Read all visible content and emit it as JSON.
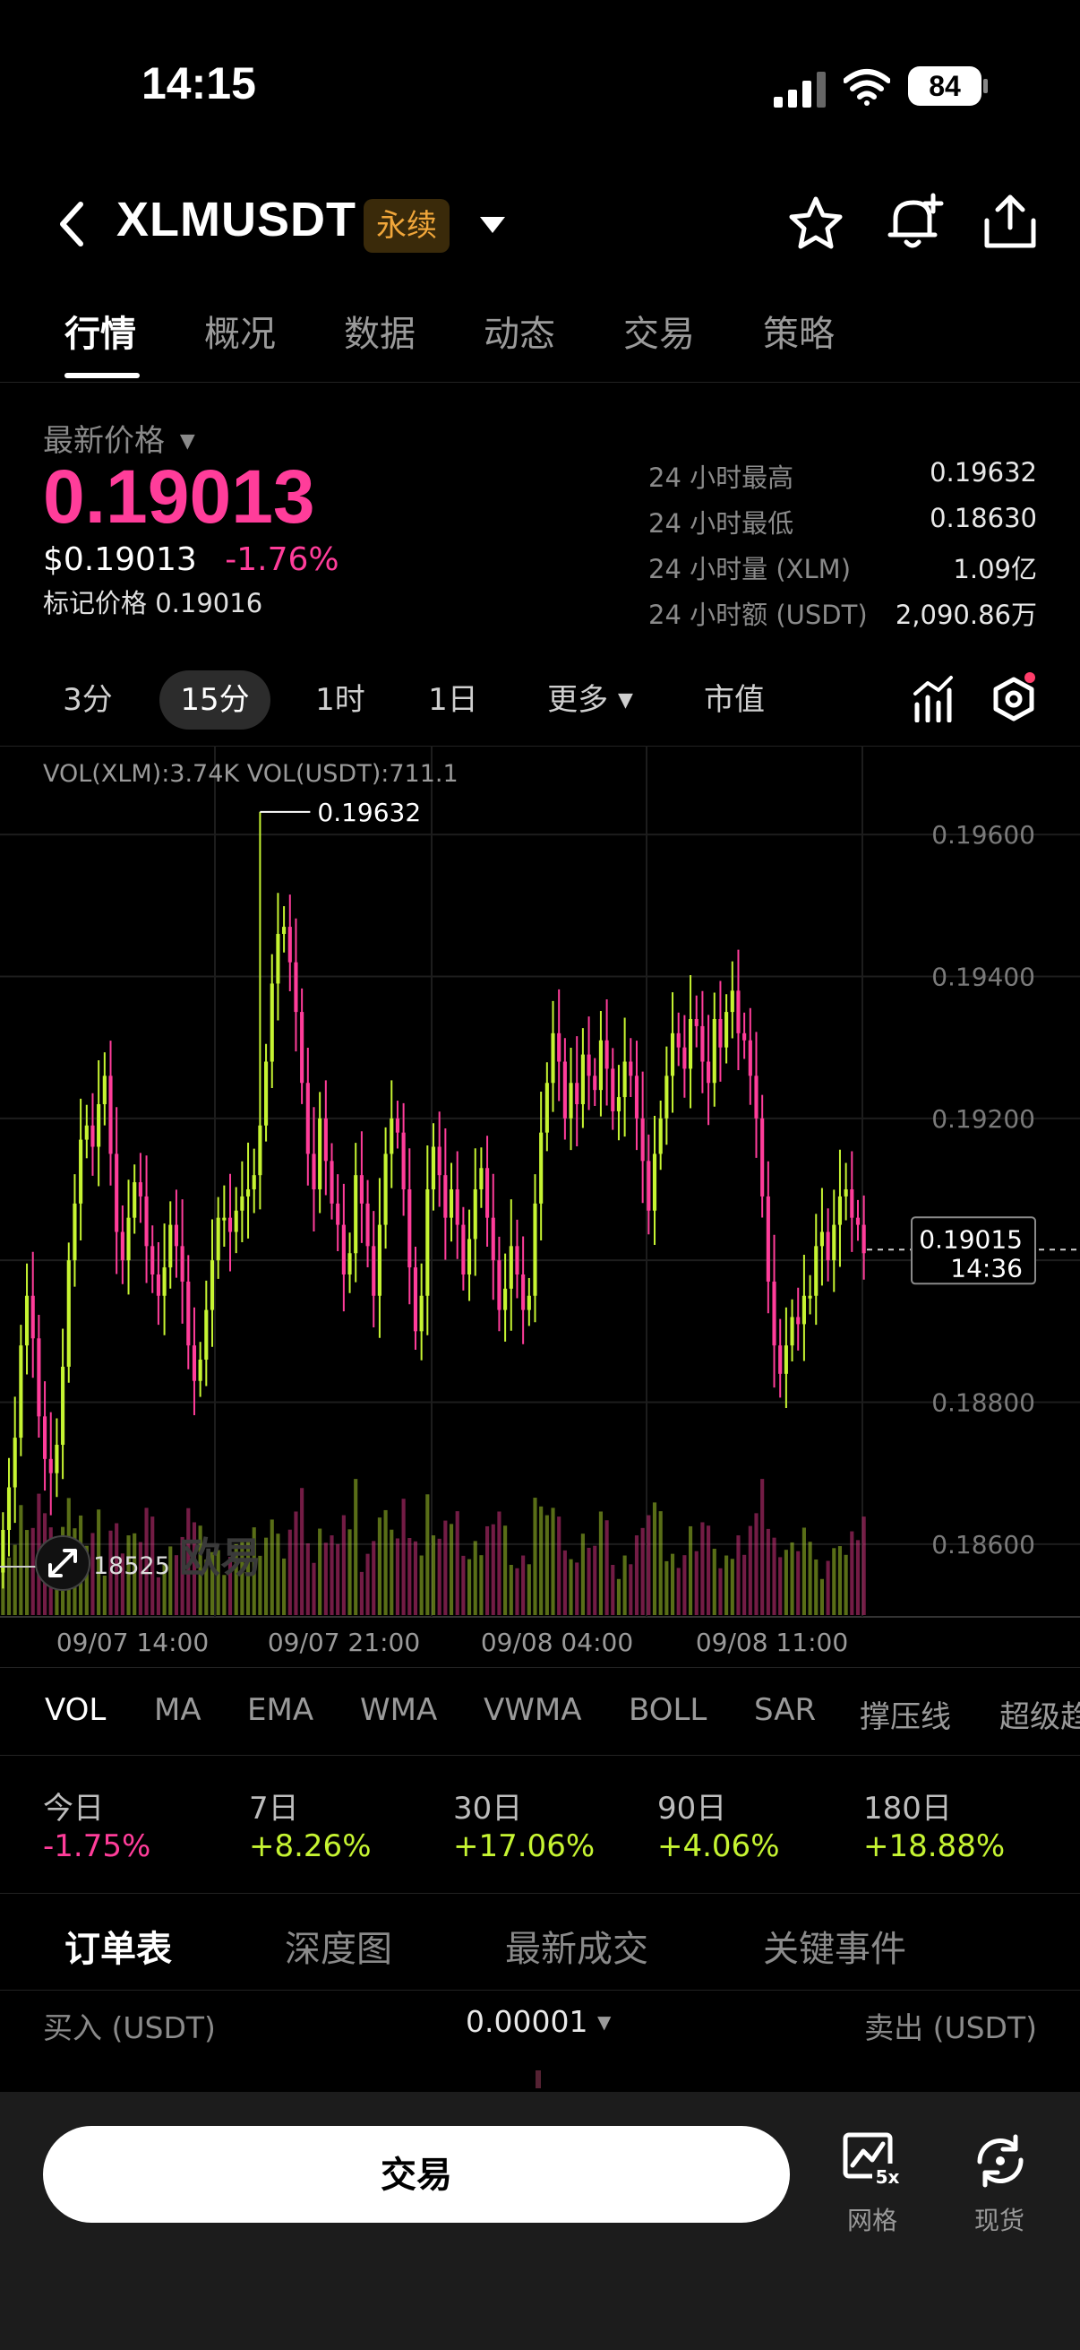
{
  "status_bar": {
    "time": "14:15",
    "battery": "84"
  },
  "header": {
    "pair": "XLMUSDT",
    "contract_badge": "永续"
  },
  "tabs": [
    {
      "label": "行情",
      "active": true
    },
    {
      "label": "概况"
    },
    {
      "label": "数据"
    },
    {
      "label": "动态"
    },
    {
      "label": "交易"
    },
    {
      "label": "策略"
    }
  ],
  "ticker": {
    "price_label": "最新价格",
    "last_price": "0.19013",
    "usd_price": "$0.19013",
    "change_pct": "-1.76%",
    "mark_price_text": "标记价格 0.19016",
    "stats": [
      {
        "label": "24 小时最高",
        "value": "0.19632"
      },
      {
        "label": "24 小时最低",
        "value": "0.18630"
      },
      {
        "label": "24 小时量 (XLM)",
        "value": "1.09亿"
      },
      {
        "label": "24 小时额 (USDT)",
        "value": "2,090.86万"
      }
    ]
  },
  "timeframes": [
    {
      "label": "3分"
    },
    {
      "label": "15分",
      "active": true
    },
    {
      "label": "1时"
    },
    {
      "label": "1日"
    },
    {
      "label": "更多"
    },
    {
      "label": "市值"
    }
  ],
  "chart_data": {
    "type": "candlestick",
    "volume_legend": "VOL(XLM):3.74K VOL(USDT):711.1",
    "y_ticks": [
      "0.19600",
      "0.19400",
      "0.19200",
      "0.18800",
      "0.18600"
    ],
    "y_range": [
      0.185,
      0.197
    ],
    "x_ticks": [
      "09/07 14:00",
      "09/07 21:00",
      "09/08 04:00",
      "09/08 11:00"
    ],
    "high_marker": "0.19632",
    "current_price_box": {
      "price": "0.19015",
      "countdown": "14:36"
    },
    "current_price": 0.19015,
    "volume_marker": "18525",
    "watermark": "欧易",
    "colors": {
      "up": "#c6f432",
      "down": "#ff3d9a"
    },
    "closes": [
      0.1862,
      0.1868,
      0.1875,
      0.1888,
      0.1895,
      0.1889,
      0.1878,
      0.1872,
      0.187,
      0.1874,
      0.1885,
      0.19,
      0.1908,
      0.1917,
      0.1919,
      0.1916,
      0.1922,
      0.1926,
      0.1915,
      0.1904,
      0.19,
      0.1906,
      0.1911,
      0.1909,
      0.1902,
      0.1898,
      0.1895,
      0.1899,
      0.1905,
      0.1902,
      0.1897,
      0.1888,
      0.1883,
      0.1886,
      0.1893,
      0.19,
      0.1906,
      0.1906,
      0.1904,
      0.1907,
      0.1909,
      0.191,
      0.1912,
      0.1919,
      0.1928,
      0.1939,
      0.1946,
      0.1947,
      0.1942,
      0.1935,
      0.1925,
      0.1915,
      0.191,
      0.192,
      0.1914,
      0.1908,
      0.1905,
      0.1898,
      0.1901,
      0.1912,
      0.1908,
      0.1902,
      0.1895,
      0.1905,
      0.1915,
      0.192,
      0.1918,
      0.191,
      0.1899,
      0.189,
      0.1895,
      0.191,
      0.1916,
      0.1912,
      0.1906,
      0.191,
      0.1905,
      0.1898,
      0.1903,
      0.191,
      0.1913,
      0.1906,
      0.19,
      0.1893,
      0.1896,
      0.1902,
      0.1898,
      0.1893,
      0.1895,
      0.1908,
      0.1918,
      0.1925,
      0.1932,
      0.1928,
      0.192,
      0.1925,
      0.1922,
      0.1929,
      0.1926,
      0.1924,
      0.1931,
      0.1927,
      0.1921,
      0.1923,
      0.1928,
      0.1926,
      0.192,
      0.1914,
      0.1907,
      0.1915,
      0.192,
      0.1926,
      0.1932,
      0.193,
      0.1927,
      0.1934,
      0.1933,
      0.1928,
      0.1925,
      0.1934,
      0.193,
      0.1935,
      0.1938,
      0.1932,
      0.1931,
      0.1926,
      0.192,
      0.1909,
      0.1897,
      0.1888,
      0.1884,
      0.1888,
      0.1892,
      0.1891,
      0.1895,
      0.1895,
      0.1902,
      0.1904,
      0.19,
      0.1905,
      0.1909,
      0.191,
      0.1906,
      0.1905,
      0.1901
    ]
  },
  "indicators": [
    {
      "label": "VOL",
      "active": true
    },
    {
      "label": "MA"
    },
    {
      "label": "EMA"
    },
    {
      "label": "WMA"
    },
    {
      "label": "VWMA"
    },
    {
      "label": "BOLL"
    },
    {
      "label": "SAR"
    },
    {
      "label": "撑压线"
    },
    {
      "label": "超级趋"
    }
  ],
  "performance": [
    {
      "label": "今日",
      "value": "-1.75%"
    },
    {
      "label": "7日",
      "value": "+8.26%"
    },
    {
      "label": "30日",
      "value": "+17.06%"
    },
    {
      "label": "90日",
      "value": "+4.06%"
    },
    {
      "label": "180日",
      "value": "+18.88%"
    }
  ],
  "order_tabs": [
    {
      "label": "订单表",
      "active": true
    },
    {
      "label": "深度图"
    },
    {
      "label": "最新成交"
    },
    {
      "label": "关键事件"
    }
  ],
  "orderbook": {
    "buy_label": "买入 (USDT)",
    "precision": "0.00001",
    "sell_label": "卖出 (USDT)"
  },
  "bottom": {
    "trade_label": "交易",
    "grid_label": "网格",
    "grid_badge": "5x",
    "spot_label": "现货"
  }
}
